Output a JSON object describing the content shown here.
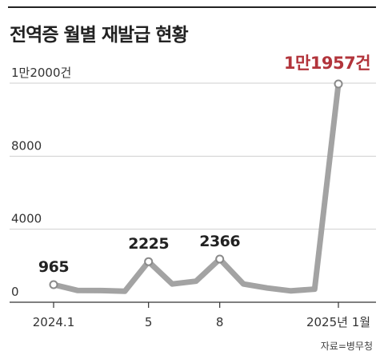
{
  "title": "전역증 월별 재발급 현황",
  "source": "자료=병무청",
  "chart_data": {
    "type": "line",
    "title": "전역증 월별 재발급 현황",
    "x": [
      "2024.1",
      "2024.2",
      "2024.3",
      "2024.4",
      "2024.5",
      "2024.6",
      "2024.7",
      "2024.8",
      "2024.9",
      "2024.10",
      "2024.11",
      "2024.12",
      "2025.1"
    ],
    "series": [
      {
        "values": [
          965,
          650,
          640,
          600,
          2225,
          1000,
          1150,
          2366,
          1000,
          780,
          620,
          720,
          11957
        ]
      }
    ],
    "xticks": [
      {
        "index": 0,
        "label": "2024.1"
      },
      {
        "index": 4,
        "label": "5"
      },
      {
        "index": 7,
        "label": "8"
      },
      {
        "index": 12,
        "label": "2025년 1월"
      }
    ],
    "yticks": [
      {
        "value": 0,
        "label": "0"
      },
      {
        "value": 4000,
        "label": "4000"
      },
      {
        "value": 8000,
        "label": "8000"
      },
      {
        "value": 12000,
        "label": "1만2000건"
      }
    ],
    "ylim": [
      0,
      12000
    ],
    "data_labels": [
      {
        "index": 0,
        "text": "965"
      },
      {
        "index": 4,
        "text": "2225"
      },
      {
        "index": 7,
        "text": "2366"
      },
      {
        "index": 12,
        "text": "1만1957건",
        "highlight": true
      }
    ],
    "point_markers": [
      0,
      4,
      7,
      12
    ],
    "grid": true,
    "colors": {
      "line": "#a3a3a3",
      "highlight": "#b2343b",
      "grid": "#cfcfcf"
    }
  }
}
